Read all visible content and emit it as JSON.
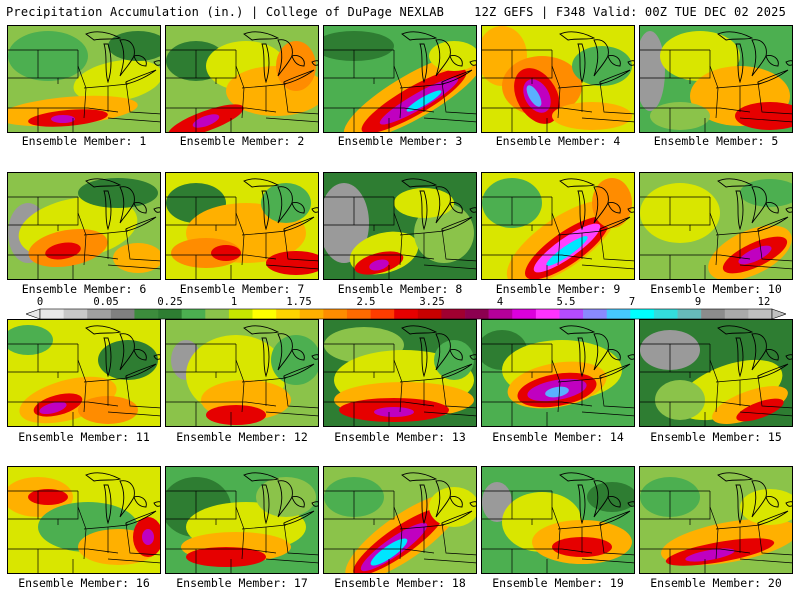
{
  "header": {
    "title": "Precipitation Accumulation (in.) | College of DuPage NEXLAB",
    "info": "12Z GEFS | F348 Valid: 00Z TUE DEC 02 2025"
  },
  "colorbar": {
    "tick_labels": [
      "0",
      "0.05",
      "0.25",
      "1",
      "1.75",
      "2.5",
      "3.25",
      "4",
      "5.5",
      "7",
      "9",
      "12"
    ],
    "colors": [
      "#e8e8e8",
      "#c8c8c8",
      "#a0a0a0",
      "#808080",
      "#3c8c3c",
      "#2e7d32",
      "#4caf50",
      "#8bc34a",
      "#c6e600",
      "#ffff00",
      "#ffd400",
      "#ffb000",
      "#ff8c00",
      "#ff6a00",
      "#ff3c00",
      "#e60000",
      "#c80000",
      "#a00030",
      "#8c0050",
      "#b4009a",
      "#dc00dc",
      "#ff33ff",
      "#b44cff",
      "#8a8aff",
      "#46c8ff",
      "#00ffff",
      "#33dddd",
      "#66bbbb",
      "#8c8c8c",
      "#aaaaaa",
      "#c0c0c0"
    ]
  },
  "panels": [
    {
      "label": "Ensemble Member: 1"
    },
    {
      "label": "Ensemble Member: 2"
    },
    {
      "label": "Ensemble Member: 3"
    },
    {
      "label": "Ensemble Member: 4"
    },
    {
      "label": "Ensemble Member: 5"
    },
    {
      "label": "Ensemble Member: 6"
    },
    {
      "label": "Ensemble Member: 7"
    },
    {
      "label": "Ensemble Member: 8"
    },
    {
      "label": "Ensemble Member: 9"
    },
    {
      "label": "Ensemble Member: 10"
    },
    {
      "label": "Ensemble Member: 11"
    },
    {
      "label": "Ensemble Member: 12"
    },
    {
      "label": "Ensemble Member: 13"
    },
    {
      "label": "Ensemble Member: 14"
    },
    {
      "label": "Ensemble Member: 15"
    },
    {
      "label": "Ensemble Member: 16"
    },
    {
      "label": "Ensemble Member: 17"
    },
    {
      "label": "Ensemble Member: 18"
    },
    {
      "label": "Ensemble Member: 19"
    },
    {
      "label": "Ensemble Member: 20"
    }
  ]
}
